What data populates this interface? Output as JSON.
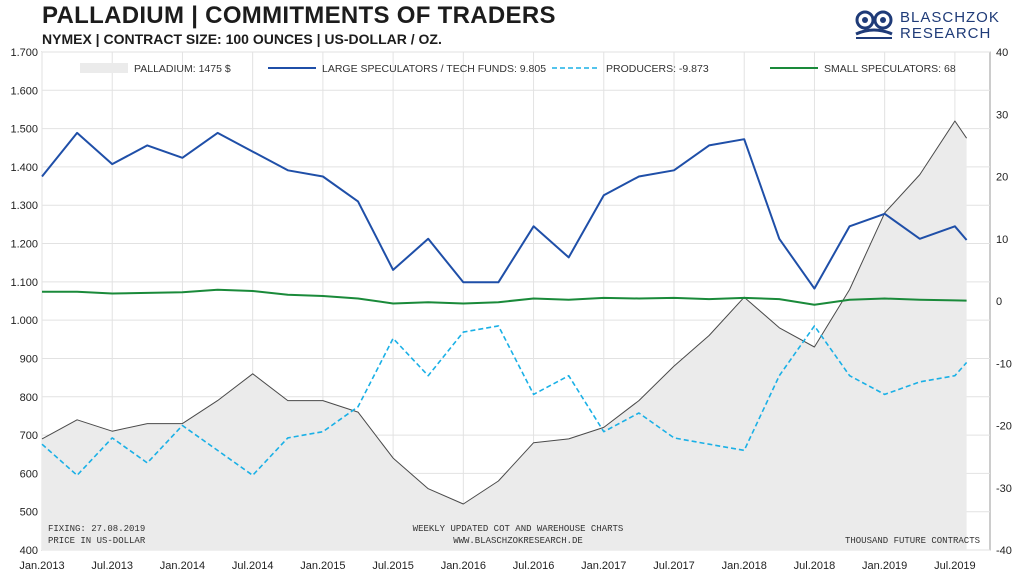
{
  "header": {
    "title": "PALLADIUM | COMMITMENTS OF TRADERS",
    "subtitle": "NYMEX | CONTRACT SIZE: 100 OUNCES | US-DOLLAR / OZ."
  },
  "logo": {
    "line1": "BLASCHZOK",
    "line2": "RESEARCH"
  },
  "footer": {
    "fixing": "FIXING: 27.08.2019",
    "price_note": "PRICE IN US-DOLLAR",
    "center_line1": "WEEKLY UPDATED COT AND WAREHOUSE CHARTS",
    "center_line2": "WWW.BLASCHZOKRESEARCH.DE",
    "right_note": "THOUSAND FUTURE CONTRACTS"
  },
  "colors": {
    "price_fill": "#ebebeb",
    "price_line": "#4a4a4a",
    "large_speculators": "#1f4fa8",
    "producers": "#1ab0e6",
    "small_speculators": "#1a8a3a"
  },
  "chart_data": {
    "type": "line",
    "left_axis": {
      "label": "PRICE IN US-DOLLAR",
      "ylim": [
        400,
        1700
      ],
      "ticks": [
        "400",
        "500",
        "600",
        "700",
        "800",
        "900",
        "1.000",
        "1.100",
        "1.200",
        "1.300",
        "1.400",
        "1.500",
        "1.600",
        "1.700"
      ]
    },
    "right_axis": {
      "label": "THOUSAND FUTURE CONTRACTS",
      "ylim": [
        -40,
        40
      ],
      "ticks": [
        "-40",
        "-30",
        "-20",
        "-10",
        "0",
        "10",
        "20",
        "30",
        "40"
      ]
    },
    "x_ticks": [
      "Jan.2013",
      "Jul.2013",
      "Jan.2014",
      "Jul.2014",
      "Jan.2015",
      "Jul.2015",
      "Jan.2016",
      "Jul.2016",
      "Jan.2017",
      "Jul.2017",
      "Jan.2018",
      "Jul.2018",
      "Jan.2019",
      "Jul.2019"
    ],
    "grid": true,
    "legend_position": "top",
    "series": [
      {
        "name": "PALLADIUM: 1475 $",
        "axis": "left",
        "style": "area",
        "x": [
          "2013-01",
          "2013-04",
          "2013-07",
          "2013-10",
          "2014-01",
          "2014-04",
          "2014-07",
          "2014-10",
          "2015-01",
          "2015-04",
          "2015-07",
          "2015-10",
          "2016-01",
          "2016-04",
          "2016-07",
          "2016-10",
          "2017-01",
          "2017-04",
          "2017-07",
          "2017-10",
          "2018-01",
          "2018-04",
          "2018-07",
          "2018-10",
          "2019-01",
          "2019-04",
          "2019-07",
          "2019-08"
        ],
        "values": [
          690,
          740,
          710,
          730,
          730,
          790,
          860,
          790,
          790,
          760,
          640,
          560,
          520,
          580,
          680,
          690,
          720,
          790,
          880,
          960,
          1060,
          980,
          930,
          1080,
          1280,
          1380,
          1520,
          1475
        ]
      },
      {
        "name": "LARGE SPECULATORS / TECH FUNDS: 9.805",
        "axis": "right",
        "style": "solid",
        "x": [
          "2013-01",
          "2013-04",
          "2013-07",
          "2013-10",
          "2014-01",
          "2014-04",
          "2014-07",
          "2014-10",
          "2015-01",
          "2015-04",
          "2015-07",
          "2015-10",
          "2016-01",
          "2016-04",
          "2016-07",
          "2016-10",
          "2017-01",
          "2017-04",
          "2017-07",
          "2017-10",
          "2018-01",
          "2018-04",
          "2018-07",
          "2018-10",
          "2019-01",
          "2019-04",
          "2019-07",
          "2019-08"
        ],
        "values": [
          20,
          27,
          22,
          25,
          23,
          27,
          24,
          21,
          20,
          16,
          5,
          10,
          3,
          3,
          12,
          7,
          17,
          20,
          21,
          25,
          26,
          10,
          2,
          12,
          14,
          10,
          12,
          9.805
        ]
      },
      {
        "name": "PRODUCERS: -9.873",
        "axis": "right",
        "style": "dashed",
        "x": [
          "2013-01",
          "2013-04",
          "2013-07",
          "2013-10",
          "2014-01",
          "2014-04",
          "2014-07",
          "2014-10",
          "2015-01",
          "2015-04",
          "2015-07",
          "2015-10",
          "2016-01",
          "2016-04",
          "2016-07",
          "2016-10",
          "2017-01",
          "2017-04",
          "2017-07",
          "2017-10",
          "2018-01",
          "2018-04",
          "2018-07",
          "2018-10",
          "2019-01",
          "2019-04",
          "2019-07",
          "2019-08"
        ],
        "values": [
          -23,
          -28,
          -22,
          -26,
          -20,
          -24,
          -28,
          -22,
          -21,
          -17,
          -6,
          -12,
          -5,
          -4,
          -15,
          -12,
          -21,
          -18,
          -22,
          -23,
          -24,
          -12,
          -4,
          -12,
          -15,
          -13,
          -12,
          -9.873
        ]
      },
      {
        "name": "SMALL SPECULATORS: 68",
        "axis": "right",
        "style": "solid",
        "x": [
          "2013-01",
          "2013-04",
          "2013-07",
          "2013-10",
          "2014-01",
          "2014-04",
          "2014-07",
          "2014-10",
          "2015-01",
          "2015-04",
          "2015-07",
          "2015-10",
          "2016-01",
          "2016-04",
          "2016-07",
          "2016-10",
          "2017-01",
          "2017-04",
          "2017-07",
          "2017-10",
          "2018-01",
          "2018-04",
          "2018-07",
          "2018-10",
          "2019-01",
          "2019-04",
          "2019-07",
          "2019-08"
        ],
        "values": [
          1.5,
          1.5,
          1.2,
          1.3,
          1.4,
          1.8,
          1.6,
          1.0,
          0.8,
          0.4,
          -0.4,
          -0.2,
          -0.4,
          -0.2,
          0.4,
          0.2,
          0.5,
          0.4,
          0.5,
          0.3,
          0.5,
          0.3,
          -0.6,
          0.2,
          0.4,
          0.2,
          0.1,
          0.068
        ]
      }
    ]
  }
}
